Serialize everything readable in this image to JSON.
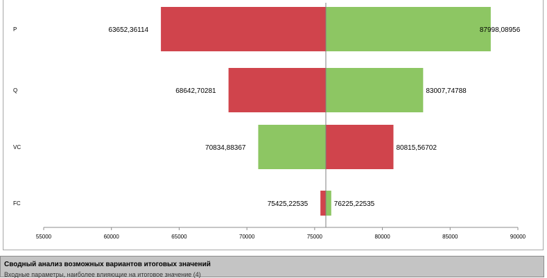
{
  "chart_data": {
    "type": "bar",
    "orientation": "horizontal-tornado",
    "base_value": 75825.22535,
    "categories": [
      "P",
      "Q",
      "VC",
      "FC"
    ],
    "bars": [
      {
        "category": "P",
        "low": 63652.36114,
        "high": 87998.08956,
        "low_label": "63652,36114",
        "high_label": "87998,08956",
        "low_color": "#d0444c",
        "high_color": "#8dc663"
      },
      {
        "category": "Q",
        "low": 68642.70281,
        "high": 83007.74788,
        "low_label": "68642,70281",
        "high_label": "83007,74788",
        "low_color": "#d0444c",
        "high_color": "#8dc663"
      },
      {
        "category": "VC",
        "low": 70834.88367,
        "high": 80815.56702,
        "low_label": "70834,88367",
        "high_label": "80815,56702",
        "low_color": "#8dc663",
        "high_color": "#d0444c"
      },
      {
        "category": "FC",
        "low": 75425.22535,
        "high": 76225.22535,
        "low_label": "75425,22535",
        "high_label": "76225,22535",
        "low_color": "#d0444c",
        "high_color": "#8dc663"
      }
    ],
    "xlim": [
      55000,
      90000
    ],
    "xticks": [
      55000,
      60000,
      65000,
      70000,
      75000,
      80000,
      85000,
      90000
    ],
    "grid": false,
    "legend": "none"
  },
  "summary": {
    "title": "Сводный анализ возможных вариантов итоговых значений",
    "subtitle": "Входные параметры, наиболее влияющие на итоговое значение (4)"
  }
}
